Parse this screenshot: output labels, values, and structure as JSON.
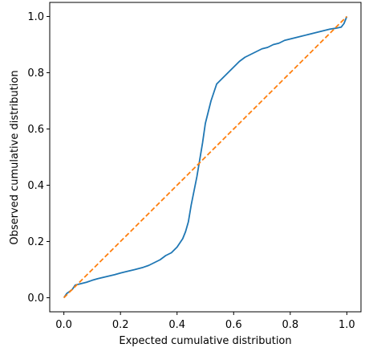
{
  "chart_data": {
    "type": "line",
    "title": "",
    "xlabel": "Expected cumulative distribution",
    "ylabel": "Observed cumulative distribution",
    "xlim": [
      -0.05,
      1.05
    ],
    "ylim": [
      -0.05,
      1.05
    ],
    "xticks": [
      "0.0",
      "0.2",
      "0.4",
      "0.6",
      "0.8",
      "1.0"
    ],
    "yticks": [
      "0.0",
      "0.2",
      "0.4",
      "0.6",
      "0.8",
      "1.0"
    ],
    "grid": false,
    "legend": false,
    "series": [
      {
        "color": "#1f77b4",
        "style": "solid",
        "x": [
          0.0,
          0.01,
          0.02,
          0.03,
          0.04,
          0.06,
          0.08,
          0.1,
          0.12,
          0.15,
          0.18,
          0.2,
          0.22,
          0.25,
          0.28,
          0.3,
          0.32,
          0.34,
          0.36,
          0.38,
          0.4,
          0.42,
          0.43,
          0.44,
          0.45,
          0.46,
          0.47,
          0.48,
          0.49,
          0.5,
          0.51,
          0.52,
          0.53,
          0.54,
          0.55,
          0.56,
          0.58,
          0.6,
          0.62,
          0.64,
          0.66,
          0.68,
          0.7,
          0.72,
          0.74,
          0.76,
          0.78,
          0.8,
          0.82,
          0.84,
          0.86,
          0.88,
          0.9,
          0.92,
          0.94,
          0.96,
          0.98,
          0.99,
          1.0
        ],
        "y": [
          0.0,
          0.015,
          0.022,
          0.03,
          0.045,
          0.05,
          0.055,
          0.062,
          0.068,
          0.075,
          0.082,
          0.088,
          0.093,
          0.1,
          0.108,
          0.115,
          0.125,
          0.135,
          0.15,
          0.16,
          0.18,
          0.21,
          0.235,
          0.27,
          0.33,
          0.38,
          0.43,
          0.49,
          0.55,
          0.62,
          0.66,
          0.7,
          0.73,
          0.76,
          0.77,
          0.78,
          0.8,
          0.82,
          0.84,
          0.855,
          0.865,
          0.875,
          0.885,
          0.89,
          0.9,
          0.905,
          0.915,
          0.92,
          0.925,
          0.93,
          0.935,
          0.94,
          0.945,
          0.95,
          0.955,
          0.958,
          0.962,
          0.975,
          1.0
        ]
      },
      {
        "color": "#ff7f0e",
        "style": "dashed",
        "x": [
          0.0,
          1.0
        ],
        "y": [
          0.0,
          1.0
        ]
      }
    ]
  }
}
